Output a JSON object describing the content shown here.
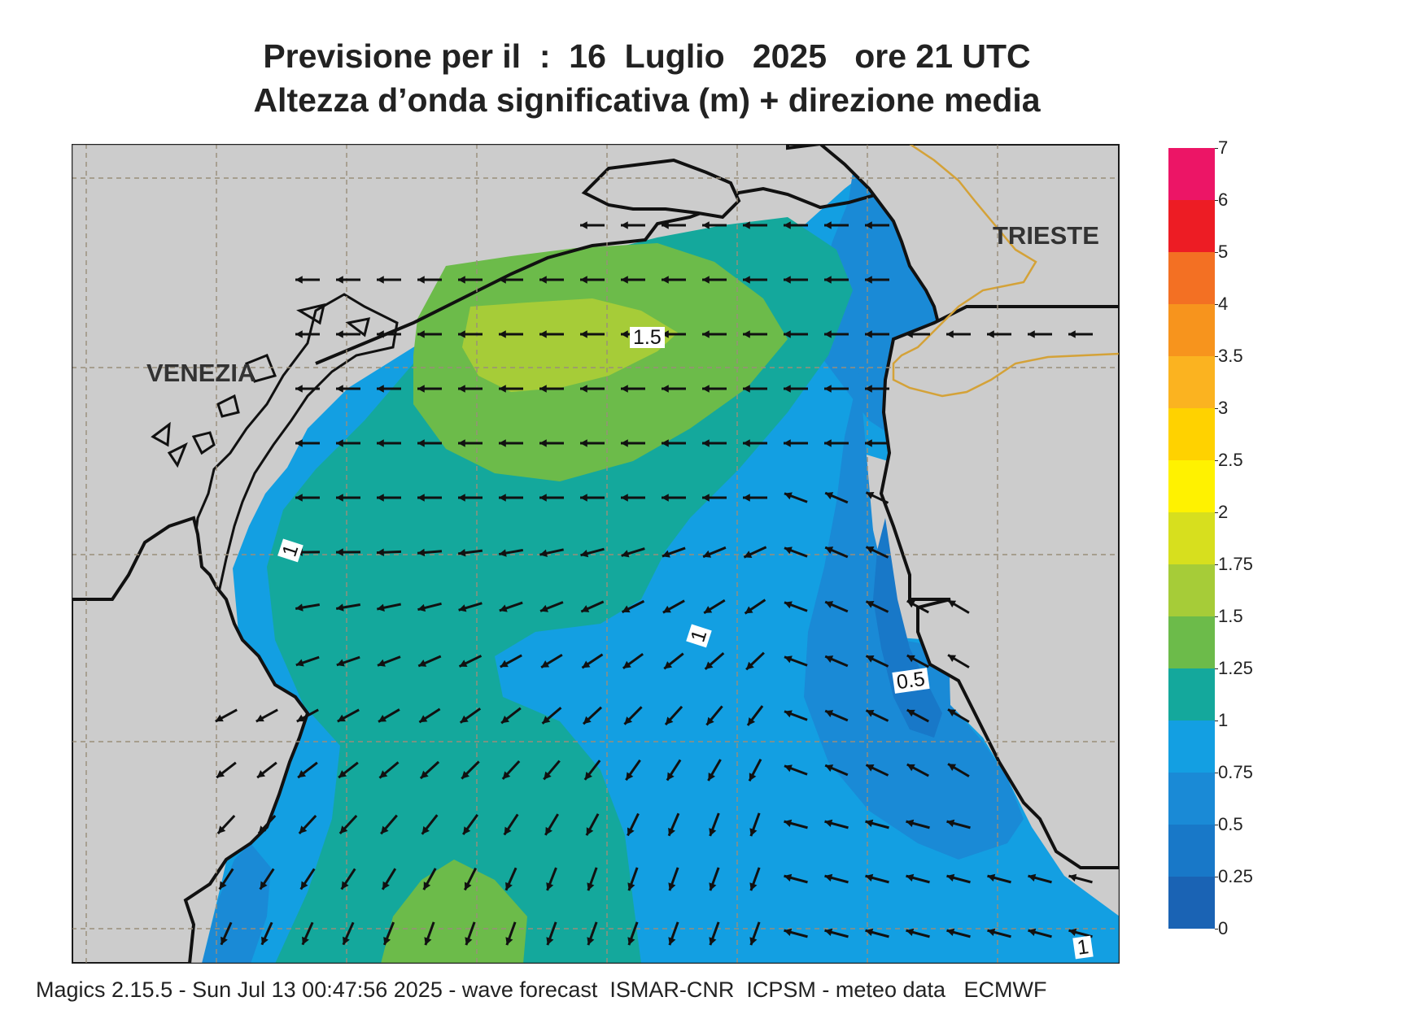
{
  "header": {
    "title_line1": "Previsione per il  :  16  Luglio   2025   ore 21 UTC",
    "title_line2": "Altezza d’onda significativa (m) + direzione media"
  },
  "places": {
    "venezia": "VENEZIA",
    "trieste": "TRIESTE"
  },
  "contour_labels": {
    "c15": "1.5",
    "c1_west": "1",
    "c1_center": "1",
    "c05": "0.5",
    "c1_south": "1"
  },
  "colorbar": {
    "levels": [
      "0",
      "0.25",
      "0.5",
      "0.75",
      "1",
      "1.25",
      "1.5",
      "1.75",
      "2",
      "2.5",
      "3",
      "3.5",
      "4",
      "5",
      "6",
      "7"
    ],
    "colors": [
      "#1a63b4",
      "#1878c8",
      "#1a8ad6",
      "#139fe2",
      "#14a89c",
      "#6cbb4a",
      "#a6cc38",
      "#d7df1e",
      "#fff200",
      "#ffd200",
      "#fbb320",
      "#f7941d",
      "#f37023",
      "#ed1c24",
      "#ec1566"
    ]
  },
  "colors": {
    "land": "#cccccc",
    "coastline": "#111111",
    "border": "#d4a238",
    "grid": "#9a8e7a",
    "arrow": "#111111"
  },
  "footer": "Magics 2.15.5 - Sun Jul 13 00:47:56 2025 - wave forecast  ISMAR-CNR  ICPSM - meteo data   ECMWF"
}
